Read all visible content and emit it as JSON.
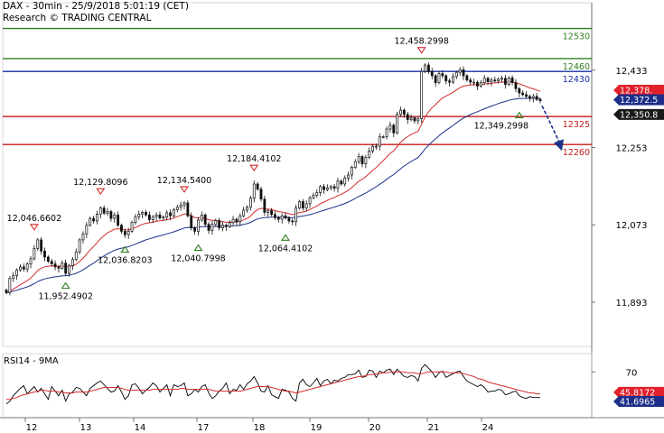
{
  "header": {
    "line1": "DAX - 30min - 25/9/2018 5:01:19 (CET)",
    "line2": "Research © TRADING CENTRAL"
  },
  "chart_data": [
    {
      "type": "candlestick",
      "ylim": [
        11790,
        12590
      ],
      "y_ticks": [
        "12,433",
        "12,253",
        "12,073",
        "11,893"
      ],
      "y_tick_values": [
        12433,
        12253,
        12073,
        11893
      ],
      "x_ticks": [
        "12",
        "13",
        "14",
        "17",
        "18",
        "19",
        "20",
        "21",
        "24"
      ],
      "levels": [
        {
          "value": 12530,
          "label": "12530",
          "color": "#2e7d1e"
        },
        {
          "value": 12460,
          "label": "12460",
          "color": "#2e7d1e"
        },
        {
          "value": 12430,
          "label": "12430",
          "color": "#1a2fa8"
        },
        {
          "value": 12325,
          "label": "12325",
          "color": "#c41a1a"
        },
        {
          "value": 12260,
          "label": "12260",
          "color": "#c41a1a"
        }
      ],
      "price_tags": [
        {
          "value": 12378,
          "label": "12,378.",
          "color": "#e0202a"
        },
        {
          "value": 12372.5,
          "label": "12,372.5",
          "color": "#1d2f8a"
        },
        {
          "value": 12350.8,
          "label": "12,350.8",
          "color": "#1a1a1a"
        }
      ],
      "extremes": [
        {
          "kind": "high",
          "value": 12046.6602,
          "label": "12,046.6602",
          "bar": 8
        },
        {
          "kind": "low",
          "value": 11952.4902,
          "label": "11,952.4902",
          "bar": 17
        },
        {
          "kind": "high",
          "value": 12129.8096,
          "label": "12,129.8096",
          "bar": 27
        },
        {
          "kind": "low",
          "value": 12036.8203,
          "label": "12,036.8203",
          "bar": 34
        },
        {
          "kind": "high",
          "value": 12134.54,
          "label": "12,134.5400",
          "bar": 51
        },
        {
          "kind": "low",
          "value": 12040.7998,
          "label": "12,040.7998",
          "bar": 55
        },
        {
          "kind": "high",
          "value": 12184.4102,
          "label": "12,184.4102",
          "bar": 71
        },
        {
          "kind": "low",
          "value": 12064.4102,
          "label": "12,064.4102",
          "bar": 80
        },
        {
          "kind": "high",
          "value": 12458.2998,
          "label": "12,458.2998",
          "bar": 119
        },
        {
          "kind": "low",
          "value": 12349.2998,
          "label": "12,349.2998",
          "bar": 147
        }
      ],
      "forecast_arrow": {
        "from_value": 12350,
        "to_value": 12245,
        "color": "#1d2f8a"
      },
      "ohlc_closes": [
        11915,
        11948,
        11955,
        11968,
        11975,
        11970,
        11982,
        11994,
        12018,
        12038,
        12012,
        11998,
        11988,
        11982,
        11975,
        11972,
        11984,
        11960,
        11978,
        11992,
        12010,
        12038,
        12052,
        12072,
        12088,
        12082,
        12098,
        12112,
        12100,
        12104,
        12088,
        12096,
        12072,
        12058,
        12050,
        12058,
        12079,
        12092,
        12098,
        12102,
        12096,
        12085,
        12092,
        12096,
        12089,
        12091,
        12101,
        12094,
        12108,
        12114,
        12119,
        12124,
        12094,
        12066,
        12058,
        12084,
        12096,
        12074,
        12060,
        12074,
        12083,
        12066,
        12072,
        12069,
        12078,
        12086,
        12080,
        12094,
        12107,
        12114,
        12135,
        12168,
        12156,
        12133,
        12102,
        12106,
        12097,
        12090,
        12086,
        12094,
        12089,
        12082,
        12080,
        12112,
        12127,
        12112,
        12122,
        12136,
        12142,
        12148,
        12162,
        12155,
        12159,
        12162,
        12158,
        12175,
        12168,
        12182,
        12189,
        12207,
        12220,
        12232,
        12215,
        12230,
        12245,
        12256,
        12256,
        12278,
        12278,
        12296,
        12305,
        12287,
        12330,
        12340,
        12330,
        12318,
        12322,
        12315,
        12320,
        12430,
        12445,
        12430,
        12420,
        12404,
        12425,
        12420,
        12408,
        12405,
        12418,
        12428,
        12434,
        12420,
        12410,
        12405,
        12405,
        12396,
        12404,
        12414,
        12406,
        12410,
        12408,
        12412,
        12414,
        12400,
        12415,
        12404,
        12390,
        12380,
        12376,
        12372,
        12368,
        12372,
        12365,
        12362
      ]
    },
    {
      "type": "line",
      "title": "RSI14 - 9MA",
      "ylim": [
        20,
        90
      ],
      "y_ticks": [
        "70"
      ],
      "y_tick_values": [
        70
      ],
      "tags": [
        {
          "value": 45.8172,
          "label": "45.8172",
          "color": "#e0202a"
        },
        {
          "value": 41.6965,
          "label": "41.6965",
          "color": "#1d2f8a"
        }
      ],
      "series": [
        {
          "name": "RSI14",
          "color": "#000000",
          "values": [
            35,
            38,
            44,
            48,
            52,
            55,
            46,
            50,
            54,
            48,
            52,
            46,
            40,
            54,
            49,
            44,
            50,
            38,
            46,
            48,
            53,
            52,
            48,
            44,
            52,
            55,
            58,
            60,
            56,
            52,
            48,
            49,
            55,
            48,
            40,
            44,
            56,
            57,
            52,
            46,
            50,
            53,
            58,
            55,
            48,
            52,
            56,
            44,
            56,
            54,
            55,
            58,
            44,
            46,
            51,
            48,
            54,
            56,
            47,
            41,
            44,
            49,
            52,
            58,
            46,
            51,
            50,
            56,
            51,
            57,
            60,
            65,
            58,
            49,
            48,
            55,
            45,
            43,
            41,
            51,
            50,
            48,
            41,
            38,
            58,
            62,
            56,
            54,
            58,
            63,
            55,
            60,
            62,
            57,
            61,
            60,
            63,
            64,
            67,
            67,
            68,
            72,
            64,
            65,
            72,
            71,
            64,
            71,
            69,
            72,
            73,
            67,
            73,
            69,
            65,
            64,
            66,
            65,
            60,
            74,
            78,
            74,
            70,
            64,
            69,
            71,
            64,
            66,
            68,
            70,
            71,
            65,
            60,
            58,
            56,
            54,
            56,
            53,
            48,
            49,
            49,
            51,
            50,
            45,
            46,
            48,
            49,
            44,
            42,
            41,
            43,
            42,
            42,
            42
          ]
        },
        {
          "name": "9MA",
          "color": "#d42b2b",
          "values": [
            40,
            40,
            41,
            42,
            44,
            45,
            46,
            47,
            48,
            49,
            50,
            50,
            49,
            49,
            49,
            48,
            48,
            47,
            47,
            47,
            48,
            48,
            48,
            48,
            49,
            50,
            51,
            52,
            53,
            53,
            53,
            53,
            53,
            52,
            51,
            50,
            50,
            50,
            50,
            50,
            50,
            50,
            51,
            51,
            51,
            51,
            51,
            51,
            51,
            51,
            52,
            52,
            51,
            51,
            51,
            51,
            51,
            51,
            51,
            50,
            49,
            49,
            49,
            49,
            49,
            49,
            49,
            49,
            50,
            51,
            52,
            53,
            54,
            54,
            54,
            54,
            53,
            52,
            51,
            50,
            49,
            49,
            48,
            47,
            48,
            49,
            50,
            51,
            52,
            53,
            54,
            55,
            56,
            57,
            58,
            59,
            60,
            61,
            62,
            63,
            64,
            65,
            65,
            66,
            67,
            67,
            68,
            68,
            69,
            69,
            70,
            70,
            70,
            70,
            70,
            69,
            69,
            69,
            68,
            68,
            69,
            70,
            70,
            70,
            70,
            70,
            70,
            69,
            69,
            69,
            69,
            68,
            67,
            66,
            65,
            63,
            62,
            61,
            59,
            58,
            57,
            56,
            55,
            54,
            53,
            52,
            51,
            50,
            49,
            48,
            47,
            47,
            46,
            46
          ]
        }
      ]
    }
  ]
}
